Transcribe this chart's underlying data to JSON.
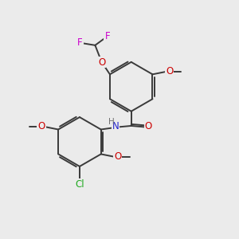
{
  "bg_color": "#ebebeb",
  "bond_color": "#3a3a3a",
  "lw": 1.4,
  "atom_colors": {
    "O": "#cc0000",
    "N": "#2222cc",
    "F": "#cc00cc",
    "Cl": "#22aa22",
    "H": "#707070"
  },
  "font_size": 8.5,
  "figsize": [
    3.0,
    3.0
  ],
  "dpi": 100
}
